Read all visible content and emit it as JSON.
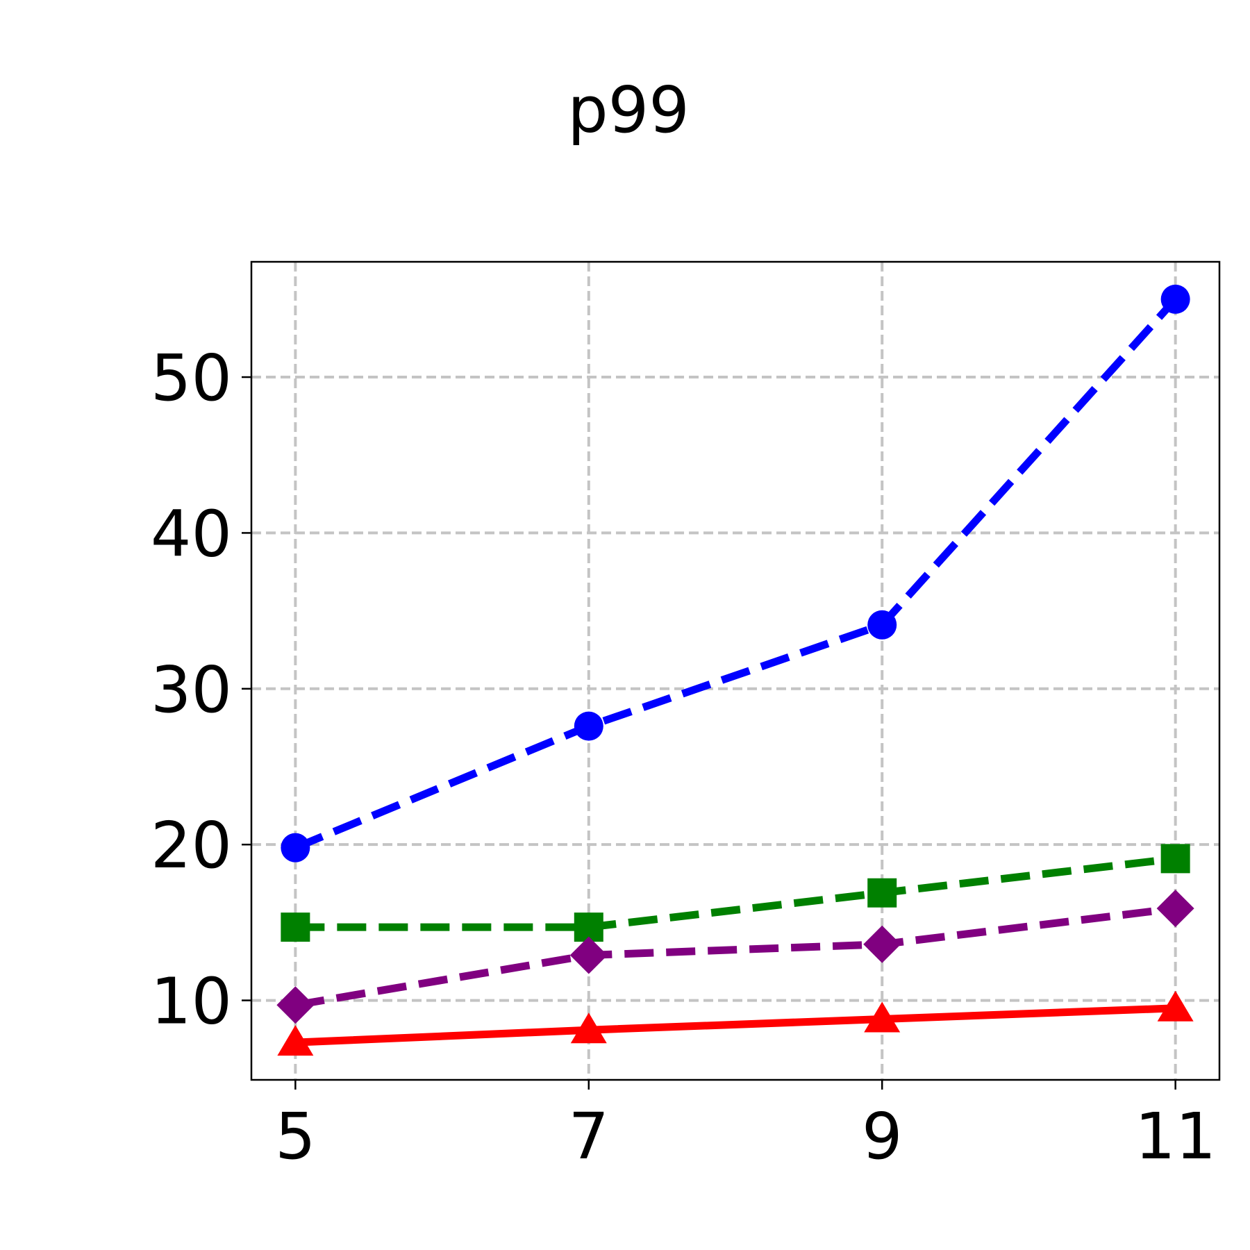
{
  "chart_data": {
    "type": "line",
    "title": "p99",
    "xlabel": "",
    "ylabel": "",
    "x": [
      5,
      7,
      9,
      11
    ],
    "xlim": [
      4.7,
      11.3
    ],
    "ylim": [
      4.9,
      57.4
    ],
    "xticks": [
      "5",
      "7",
      "9",
      "11"
    ],
    "yticks": [
      "10",
      "20",
      "30",
      "40",
      "50"
    ],
    "xtick_values": [
      5,
      7,
      9,
      11
    ],
    "ytick_values": [
      10,
      20,
      30,
      40,
      50
    ],
    "grid": true,
    "series": [
      {
        "values": [
          19.8,
          27.6,
          34.1,
          55.0
        ],
        "color": "#0000ff",
        "marker": "circle",
        "line": "dashed"
      },
      {
        "values": [
          14.7,
          14.7,
          16.9,
          19.1
        ],
        "color": "#008000",
        "marker": "square",
        "line": "dashed"
      },
      {
        "values": [
          9.7,
          12.9,
          13.6,
          15.9
        ],
        "color": "#800080",
        "marker": "diamond",
        "line": "dashed"
      },
      {
        "values": [
          7.3,
          8.1,
          8.8,
          9.5
        ],
        "color": "#ff0000",
        "marker": "triangle",
        "line": "solid"
      }
    ]
  }
}
